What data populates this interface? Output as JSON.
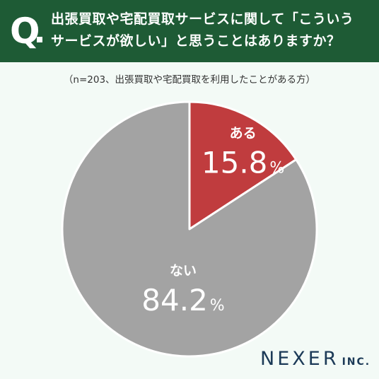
{
  "header": {
    "q_mark": "Q",
    "question_line1": "出張買取や宅配買取サービスに関して「こういう",
    "question_line2": "サービスが欲しい」と思うことはありますか？"
  },
  "note": "（n=203、出張買取や宅配買取を利用したことがある方）",
  "chart_data": {
    "type": "pie",
    "title": "出張買取や宅配買取サービスに関して「こういうサービスが欲しい」と思うことはありますか？",
    "slices": [
      {
        "label": "ある",
        "value": 15.8,
        "display": "15.8",
        "unit": "%",
        "color": "#c03c3e"
      },
      {
        "label": "ない",
        "value": 84.2,
        "display": "84.2",
        "unit": "%",
        "color": "#a3a3a3"
      }
    ],
    "start": "12 o'clock",
    "direction": "clockwise"
  },
  "brand": {
    "name": "NEXER",
    "suffix": "INC.",
    "color": "#1c3a57"
  },
  "colors": {
    "header_bg": "#1e5b35",
    "page_bg": "#f3faf6"
  }
}
